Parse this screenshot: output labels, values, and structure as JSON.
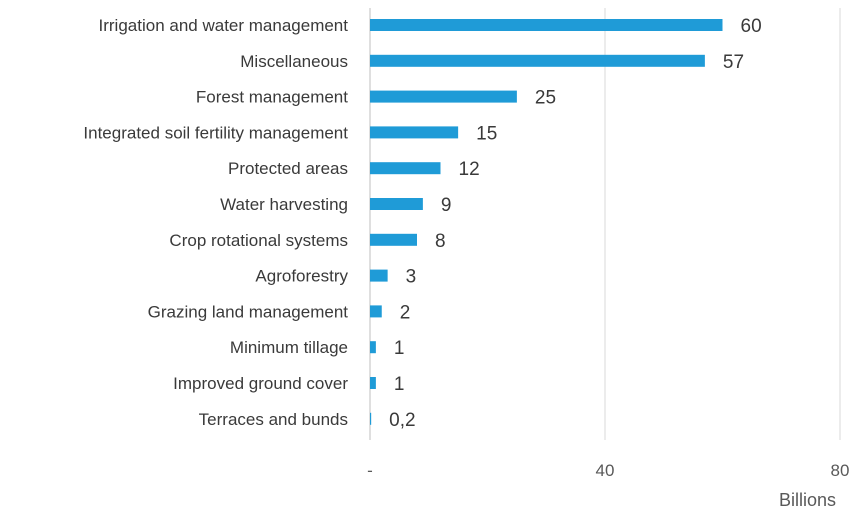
{
  "chart_data": {
    "type": "bar",
    "orientation": "horizontal",
    "categories": [
      "Irrigation and water management",
      "Miscellaneous",
      "Forest management",
      "Integrated soil fertility management",
      "Protected areas",
      "Water harvesting",
      "Crop rotational systems",
      "Agroforestry",
      "Grazing land management",
      "Minimum tillage",
      "Improved ground cover",
      "Terraces and bunds"
    ],
    "values": [
      60,
      57,
      25,
      15,
      12,
      9,
      8,
      3,
      2,
      1,
      1,
      0.2
    ],
    "data_labels": [
      "60",
      "57",
      "25",
      "15",
      "12",
      "9",
      "8",
      "3",
      "2",
      "1",
      "1",
      "0,2"
    ],
    "xlim": [
      0,
      80
    ],
    "x_ticks": [
      0,
      40,
      80
    ],
    "x_tick_labels": [
      "-",
      "40",
      "80"
    ],
    "unit_label": "Billions",
    "bar_color": "#1f9bd7",
    "grid": "vertical",
    "legend": "none"
  }
}
